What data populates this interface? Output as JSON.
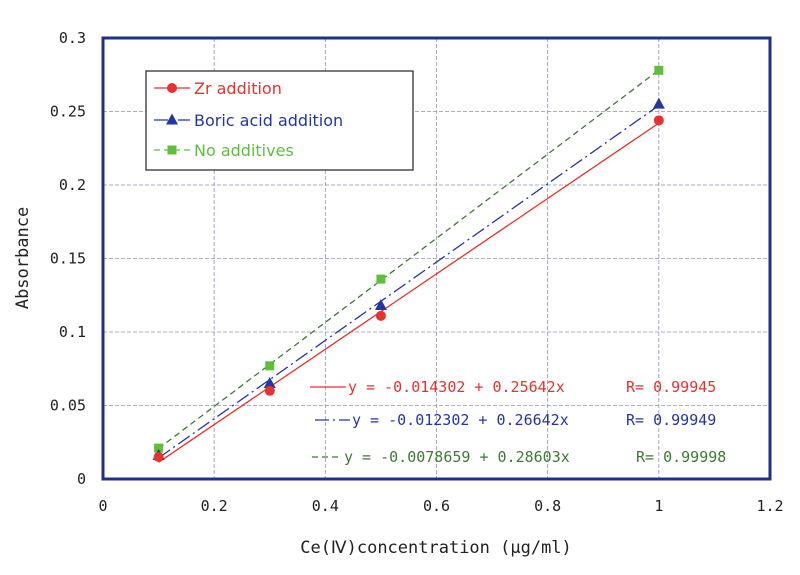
{
  "chart_data": {
    "type": "scatter",
    "title": "",
    "xlabel": "Ce(Ⅳ)concentration (μg/ml)",
    "ylabel": "Absorbance",
    "xlim": [
      0,
      1.2
    ],
    "ylim": [
      0,
      0.3
    ],
    "x_ticks": [
      "0",
      "0.2",
      "0.4",
      "0.6",
      "0.8",
      "1",
      "1.2"
    ],
    "y_ticks": [
      "0",
      "0.05",
      "0.1",
      "0.15",
      "0.2",
      "0.25",
      "0.3"
    ],
    "grid": true,
    "legend_position": "top-left",
    "x": [
      0.1,
      0.3,
      0.5,
      1.0
    ],
    "series": [
      {
        "name": "Zr addition",
        "color": "#e8322d",
        "marker": "circle",
        "line": "solid",
        "values": [
          0.015,
          0.06,
          0.111,
          0.244
        ],
        "fit": {
          "intercept": -0.014302,
          "slope": 0.25642
        },
        "equation": "y = -0.014302 + 0.25642x",
        "r_label": "R= 0.99945"
      },
      {
        "name": "Boric acid addition",
        "color": "#2536a3",
        "marker": "triangle",
        "line": "dashdot",
        "values": [
          0.016,
          0.065,
          0.118,
          0.255
        ],
        "fit": {
          "intercept": -0.012302,
          "slope": 0.26642
        },
        "equation": "y = -0.012302 + 0.26642x",
        "r_label": "R= 0.99949"
      },
      {
        "name": "No additives",
        "color": "#5fbf3a",
        "fit_color": "#3f7a35",
        "marker": "square",
        "line": "dashed",
        "values": [
          0.021,
          0.077,
          0.136,
          0.278
        ],
        "fit": {
          "intercept": -0.0078659,
          "slope": 0.28603
        },
        "equation": "y = -0.0078659 + 0.28603x",
        "r_label": "R= 0.99998"
      }
    ]
  },
  "colors": {
    "frame": "#1f2f8a",
    "grid": "#8e94b8"
  }
}
